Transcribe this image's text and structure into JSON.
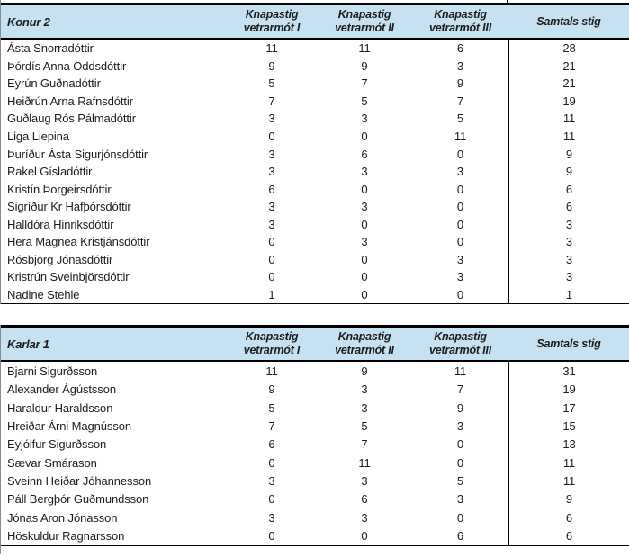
{
  "colors": {
    "header_bg": "#c6e2f2",
    "border_dark": "#000000",
    "border_light": "#8a8a8a",
    "text": "#1c1c1c"
  },
  "tables": [
    {
      "title": "Konur 2",
      "columns": [
        {
          "line1": "Knapastig",
          "line2": "vetrarmót I"
        },
        {
          "line1": "Knapastig",
          "line2": "vetrarmót II"
        },
        {
          "line1": "Knapastig",
          "line2": "vetrarmót III"
        },
        {
          "line1": "Samtals stig",
          "line2": ""
        }
      ],
      "rows": [
        {
          "name": "Ásta Snorradóttir",
          "scores": [
            "11",
            "11",
            "6"
          ],
          "total": "28"
        },
        {
          "name": "Þórdís Anna Oddsdóttir",
          "scores": [
            "9",
            "9",
            "3"
          ],
          "total": "21"
        },
        {
          "name": "Eyrún Guðnadóttir",
          "scores": [
            "5",
            "7",
            "9"
          ],
          "total": "21"
        },
        {
          "name": "Heiðrún Arna Rafnsdóttir",
          "scores": [
            "7",
            "5",
            "7"
          ],
          "total": "19"
        },
        {
          "name": "Guðlaug Rós Pálmadóttir",
          "scores": [
            "3",
            "3",
            "5"
          ],
          "total": "11"
        },
        {
          "name": "Liga Liepina",
          "scores": [
            "0",
            "0",
            "11"
          ],
          "total": "11"
        },
        {
          "name": "Þuríður Ásta Sigurjónsdóttir",
          "scores": [
            "3",
            "6",
            "0"
          ],
          "total": "9"
        },
        {
          "name": "Rakel Gísladóttir",
          "scores": [
            "3",
            "3",
            "3"
          ],
          "total": "9"
        },
        {
          "name": "Kristín Þorgeirsdóttir",
          "scores": [
            "6",
            "0",
            "0"
          ],
          "total": "6"
        },
        {
          "name": "Sigríður Kr Hafþórsdóttir",
          "scores": [
            "3",
            "3",
            "0"
          ],
          "total": "6"
        },
        {
          "name": "Halldóra Hinriksdóttir",
          "scores": [
            "3",
            "0",
            "0"
          ],
          "total": "3"
        },
        {
          "name": "Hera Magnea Kristjánsdóttir",
          "scores": [
            "0",
            "3",
            "0"
          ],
          "total": "3"
        },
        {
          "name": "Rósbjörg Jónasdóttir",
          "scores": [
            "0",
            "0",
            "3"
          ],
          "total": "3"
        },
        {
          "name": "Kristrún Sveinbjörsdóttir",
          "scores": [
            "0",
            "0",
            "3"
          ],
          "total": "3"
        },
        {
          "name": "Nadine Stehle",
          "scores": [
            "1",
            "0",
            "0"
          ],
          "total": "1"
        }
      ]
    },
    {
      "title": "Karlar 1",
      "columns": [
        {
          "line1": "Knapastig",
          "line2": "vetrarmót I"
        },
        {
          "line1": "Knapastig",
          "line2": "vetrarmót II"
        },
        {
          "line1": "Knapastig",
          "line2": "vetrarmót III"
        },
        {
          "line1": "Samtals stig",
          "line2": ""
        }
      ],
      "rows": [
        {
          "name": "Bjarni Sigurðsson",
          "scores": [
            "11",
            "9",
            "11"
          ],
          "total": "31"
        },
        {
          "name": "Alexander Ágústsson",
          "scores": [
            "9",
            "3",
            "7"
          ],
          "total": "19"
        },
        {
          "name": "Haraldur Haraldsson",
          "scores": [
            "5",
            "3",
            "9"
          ],
          "total": "17"
        },
        {
          "name": "Hreiðar Árni Magnússon",
          "scores": [
            "7",
            "5",
            "3"
          ],
          "total": "15"
        },
        {
          "name": "Eyjólfur Sigurðsson",
          "scores": [
            "6",
            "7",
            "0"
          ],
          "total": "13"
        },
        {
          "name": "Sævar Smárason",
          "scores": [
            "0",
            "11",
            "0"
          ],
          "total": "11"
        },
        {
          "name": "Sveinn Heiðar Jóhannesson",
          "scores": [
            "3",
            "3",
            "5"
          ],
          "total": "11"
        },
        {
          "name": "Páll Bergþór Guðmundsson",
          "scores": [
            "0",
            "6",
            "3"
          ],
          "total": "9"
        },
        {
          "name": "Jónas Aron Jónasson",
          "scores": [
            "3",
            "3",
            "0"
          ],
          "total": "6"
        },
        {
          "name": "Höskuldur Ragnarsson",
          "scores": [
            "0",
            "0",
            "6"
          ],
          "total": "6"
        }
      ]
    }
  ]
}
